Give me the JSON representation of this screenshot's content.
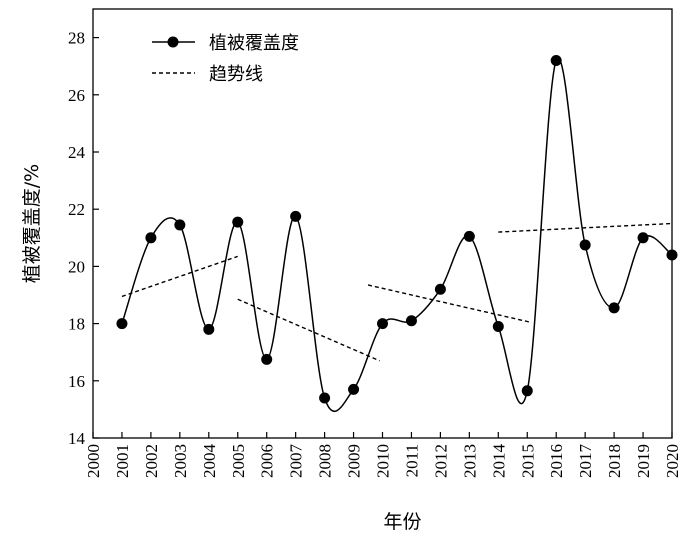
{
  "chart_data": {
    "type": "line",
    "xlabel": "年份",
    "ylabel": "植被覆盖度/%",
    "xlim": [
      2000,
      2020
    ],
    "ylim": [
      14,
      29
    ],
    "x_ticks": [
      "2000",
      "2001",
      "2002",
      "2003",
      "2004",
      "2005",
      "2006",
      "2007",
      "2008",
      "2009",
      "2010",
      "2011",
      "2012",
      "2013",
      "2014",
      "2015",
      "2016",
      "2017",
      "2018",
      "2019",
      "2020"
    ],
    "y_ticks": [
      "14",
      "16",
      "18",
      "20",
      "22",
      "24",
      "26",
      "28"
    ],
    "series": [
      {
        "name": "植被覆盖度",
        "style": "smooth-line-with-markers",
        "color": "#000000",
        "x": [
          2001,
          2002,
          2003,
          2004,
          2005,
          2006,
          2007,
          2008,
          2009,
          2010,
          2011,
          2012,
          2013,
          2014,
          2015,
          2016,
          2017,
          2018,
          2019,
          2020
        ],
        "values": [
          18.0,
          21.0,
          21.45,
          17.8,
          21.55,
          16.75,
          21.75,
          15.4,
          15.7,
          18.0,
          18.1,
          19.2,
          21.05,
          17.9,
          15.65,
          27.2,
          20.75,
          18.55,
          21.0,
          20.4
        ]
      },
      {
        "name": "趋势线",
        "style": "dashed",
        "color": "#000000",
        "segments": [
          {
            "x": [
              2001,
              2005
            ],
            "values": [
              18.95,
              20.35
            ]
          },
          {
            "x": [
              2005,
              2009.9
            ],
            "values": [
              18.85,
              16.7
            ]
          },
          {
            "x": [
              2009.5,
              2015.1
            ],
            "values": [
              19.35,
              18.05
            ]
          },
          {
            "x": [
              2014,
              2020
            ],
            "values": [
              21.2,
              21.5
            ]
          }
        ]
      }
    ],
    "legend": {
      "position": "top-left",
      "entries": [
        "植被覆盖度",
        "趋势线"
      ]
    },
    "grid": false
  }
}
